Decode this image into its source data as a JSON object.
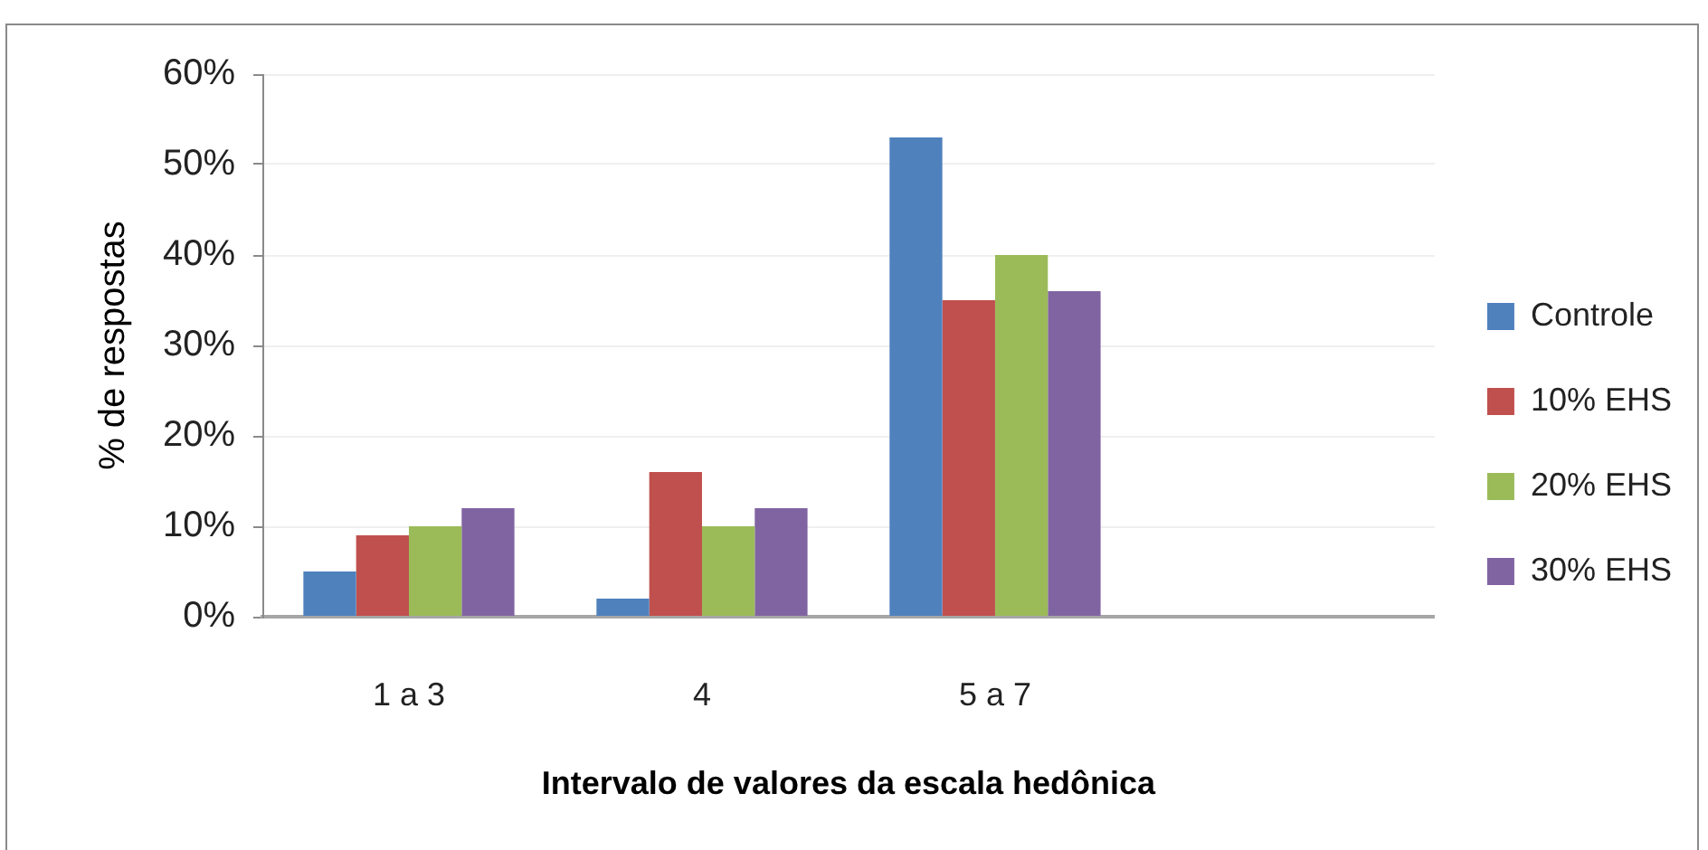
{
  "chart_data": {
    "type": "bar",
    "categories": [
      "1 a 3",
      "4",
      "5 a 7",
      null
    ],
    "series": [
      {
        "name": "Controle",
        "color": "#4f81bd",
        "values": [
          5,
          2,
          53,
          null
        ]
      },
      {
        "name": "10% EHS",
        "color": "#c0504d",
        "values": [
          9,
          16,
          35,
          null
        ]
      },
      {
        "name": "20% EHS",
        "color": "#9bbb59",
        "values": [
          10,
          10,
          40,
          null
        ]
      },
      {
        "name": "30% EHS",
        "color": "#8064a2",
        "values": [
          12,
          12,
          36,
          null
        ]
      }
    ],
    "ylim": [
      0,
      60
    ],
    "yticks": [
      {
        "value": 0,
        "label": "0%"
      },
      {
        "value": 10,
        "label": "10%"
      },
      {
        "value": 20,
        "label": "20%"
      },
      {
        "value": 30,
        "label": "30%"
      },
      {
        "value": 40,
        "label": "40%"
      },
      {
        "value": 50,
        "label": "50%"
      },
      {
        "value": 60,
        "label": "60%"
      }
    ],
    "xlabel": "Intervalo de valores da escala hedônica",
    "ylabel": "% de respostas",
    "grid": "y",
    "legend": "right"
  }
}
